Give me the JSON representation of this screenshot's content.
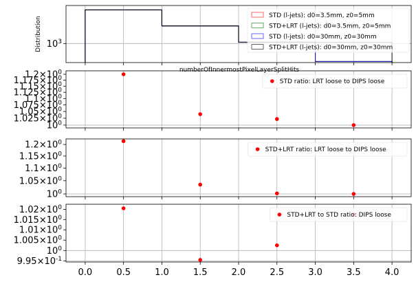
{
  "chart_data": [
    {
      "type": "line",
      "drawstyle": "steps",
      "ylabel": "Distribution",
      "xlabel": "numberOfInnermostPixelLayerSplitHits",
      "yscale": "log",
      "grid": true,
      "legend_position": "upper right",
      "y_tick_labels": [
        "10^3"
      ],
      "bin_edges": [
        0,
        1,
        2,
        3,
        4
      ],
      "series": [
        {
          "name": "STD (l-jets): d0=3.5mm, z0=5mm",
          "color": "#ff0000",
          "values": [
            3400,
            1900,
            1050,
            520
          ]
        },
        {
          "name": "STD+LRT (l-jets): d0=3.5mm, z0=5mm",
          "color": "#008000",
          "values": [
            3400,
            1900,
            1050,
            520
          ]
        },
        {
          "name": "STD (l-jets): d0=30mm, z0=30mm",
          "color": "#0000ff",
          "values": [
            3400,
            1900,
            1050,
            520
          ]
        },
        {
          "name": "STD+LRT (l-jets): d0=30mm, z0=30mm",
          "color": "#000000",
          "values": [
            3400,
            1900,
            1050,
            1050
          ]
        }
      ]
    },
    {
      "type": "scatter",
      "yscale": "log",
      "grid": true,
      "legend_position": "upper right",
      "x_ticks": [
        "0.0",
        "0.5",
        "1.0",
        "1.5",
        "2.0",
        "2.5",
        "3.0",
        "3.5",
        "4.0"
      ],
      "y_ticks": [
        1.0,
        1.025,
        1.05,
        1.075,
        1.1,
        1.125,
        1.15,
        1.175,
        1.2
      ],
      "y_tick_labels": [
        "10^0",
        "1.025×10^0",
        "1.05×10^0",
        "1.075×10^0",
        "1.1×10^0",
        "1.125×10^0",
        "1.15×10^0",
        "1.175×10^0",
        "1.2×10^0"
      ],
      "series": [
        {
          "name": "STD ratio: LRT loose to DIPS loose",
          "color": "#ff0000",
          "x": [
            0.5,
            1.5,
            2.5,
            3.5
          ],
          "y": [
            1.2,
            1.04,
            1.022,
            1.0
          ]
        }
      ]
    },
    {
      "type": "scatter",
      "yscale": "log",
      "grid": true,
      "legend_position": "upper right",
      "y_ticks": [
        1.0,
        1.05,
        1.1,
        1.15,
        1.2
      ],
      "y_tick_labels": [
        "10^0",
        "1.05×10^0",
        "1.1×10^0",
        "1.15×10^0",
        "1.2×10^0"
      ],
      "series": [
        {
          "name": "STD+LRT ratio: LRT loose to DIPS loose",
          "color": "#ff0000",
          "x": [
            0.5,
            1.5,
            2.5,
            3.5
          ],
          "y": [
            1.215,
            1.035,
            1.002,
            1.0
          ]
        }
      ]
    },
    {
      "type": "scatter",
      "yscale": "log",
      "grid": true,
      "legend_position": "upper right",
      "x_tick_labels": [
        "0.0",
        "0.5",
        "1.0",
        "1.5",
        "2.0",
        "2.5",
        "3.0",
        "3.5",
        "4.0"
      ],
      "y_ticks": [
        0.995,
        1.0,
        1.005,
        1.01,
        1.015,
        1.02
      ],
      "y_tick_labels": [
        "9.95×10^-1",
        "10^0",
        "1.005×10^0",
        "1.01×10^0",
        "1.015×10^0",
        "1.02×10^0"
      ],
      "series": [
        {
          "name": "STD+LRT to STD ratio: DIPS loose",
          "color": "#ff0000",
          "x": [
            0.5,
            1.5,
            2.5,
            3.5
          ],
          "y": [
            1.0205,
            0.9955,
            1.0025,
            1.0175
          ]
        }
      ]
    }
  ]
}
